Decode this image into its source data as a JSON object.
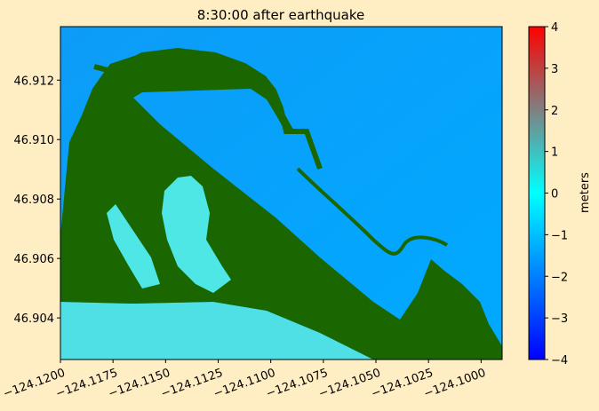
{
  "chart_data": {
    "type": "heatmap",
    "title": "8:30:00 after earthquake",
    "xlabel": "",
    "ylabel": "",
    "xlim": [
      -124.12,
      -124.099
    ],
    "ylim": [
      46.9026,
      46.9138
    ],
    "x_ticks": [
      {
        "value": -124.12,
        "label": "−124.1200"
      },
      {
        "value": -124.1175,
        "label": "−124.1175"
      },
      {
        "value": -124.115,
        "label": "−124.1150"
      },
      {
        "value": -124.1125,
        "label": "−124.1125"
      },
      {
        "value": -124.11,
        "label": "−124.1100"
      },
      {
        "value": -124.1075,
        "label": "−124.1075"
      },
      {
        "value": -124.105,
        "label": "−124.1050"
      },
      {
        "value": -124.1025,
        "label": "−124.1025"
      },
      {
        "value": -124.1,
        "label": "−124.1000"
      }
    ],
    "y_ticks": [
      {
        "value": 46.904,
        "label": "46.904"
      },
      {
        "value": 46.906,
        "label": "46.906"
      },
      {
        "value": 46.908,
        "label": "46.908"
      },
      {
        "value": 46.91,
        "label": "46.910"
      },
      {
        "value": 46.912,
        "label": "46.912"
      }
    ],
    "colorbar": {
      "label": "meters",
      "range": [
        -4,
        4
      ],
      "ticks": [
        {
          "value": 4,
          "label": "4"
        },
        {
          "value": 3,
          "label": "3"
        },
        {
          "value": 2,
          "label": "2"
        },
        {
          "value": 1,
          "label": "1"
        },
        {
          "value": 0,
          "label": "0"
        },
        {
          "value": -1,
          "label": "−1"
        },
        {
          "value": -2,
          "label": "−2"
        },
        {
          "value": -3,
          "label": "−3"
        },
        {
          "value": -4,
          "label": "−4"
        }
      ],
      "colors": [
        "#0000ff",
        "#0080ff",
        "#00ffff",
        "#808080",
        "#ff0000"
      ]
    },
    "colors": {
      "water": "#00a6ff",
      "shallow_water": "#4fe6e6",
      "land": "#1a6600",
      "figure_background": "#ffedc4"
    }
  }
}
